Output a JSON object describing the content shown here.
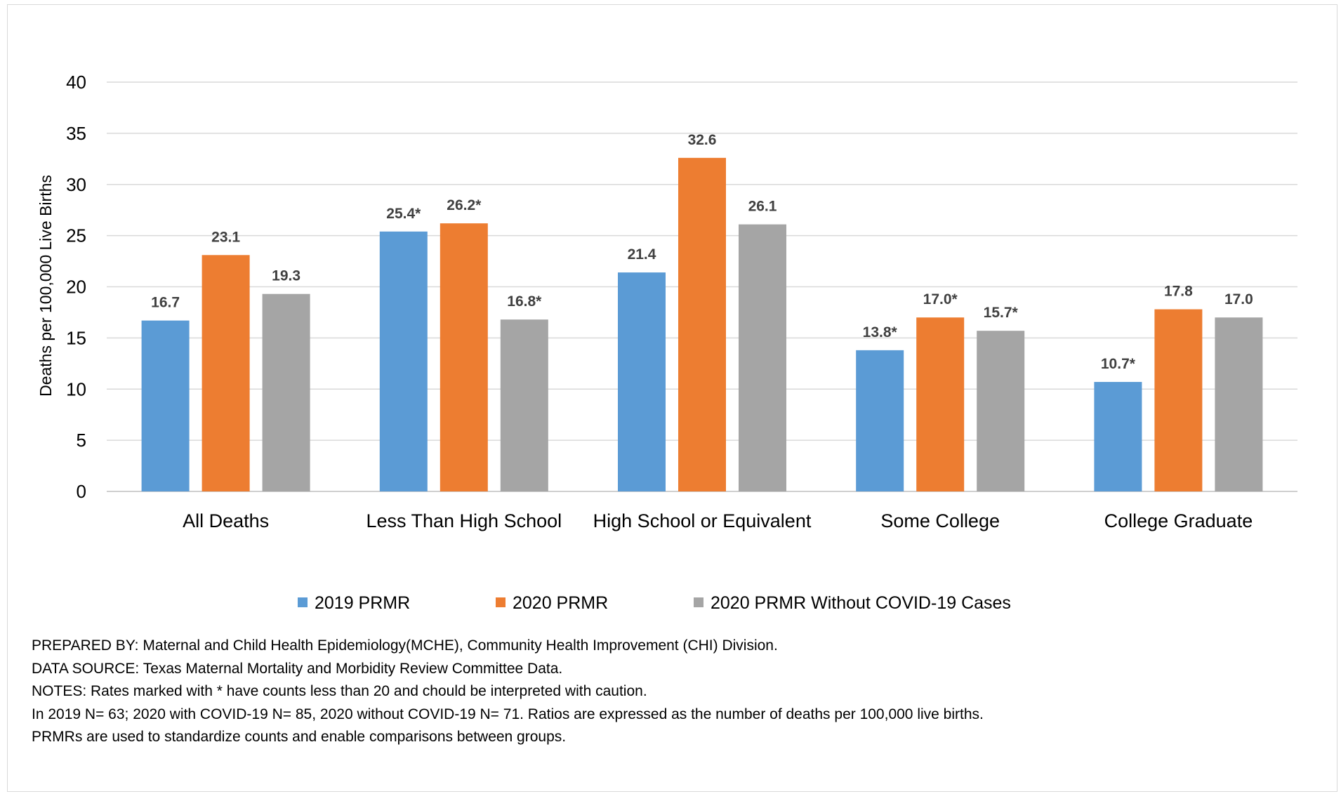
{
  "chart_data": {
    "type": "bar",
    "title": "",
    "xlabel": "",
    "ylabel": "Deaths per 100,000 Live Births",
    "ylim": [
      0,
      40
    ],
    "yticks": [
      0,
      5,
      10,
      15,
      20,
      25,
      30,
      35,
      40
    ],
    "grid": true,
    "legend_position": "bottom",
    "categories": [
      "All Deaths",
      "Less Than High School",
      "High School or Equivalent",
      "Some College",
      "College Graduate"
    ],
    "series": [
      {
        "name": "2019 PRMR",
        "color": "#5b9bd5",
        "values": [
          16.7,
          25.4,
          21.4,
          13.8,
          10.7
        ],
        "labels": [
          "16.7",
          "25.4*",
          "21.4",
          "13.8*",
          "10.7*"
        ]
      },
      {
        "name": "2020 PRMR",
        "color": "#ed7d31",
        "values": [
          23.1,
          26.2,
          32.6,
          17.0,
          17.8
        ],
        "labels": [
          "23.1",
          "26.2*",
          "32.6",
          "17.0*",
          "17.8"
        ]
      },
      {
        "name": "2020 PRMR Without COVID-19 Cases",
        "color": "#a5a5a5",
        "values": [
          19.3,
          16.8,
          26.1,
          15.7,
          17.0
        ],
        "labels": [
          "19.3",
          "16.8*",
          "26.1",
          "15.7*",
          "17.0"
        ]
      }
    ]
  },
  "notes": {
    "prepared_by": "PREPARED BY: Maternal and Child Health Epidemiology(MCHE), Community Health Improvement (CHI) Division.",
    "data_source": "DATA SOURCE: Texas Maternal Mortality and Morbidity Review Committee Data.",
    "notes_line": "NOTES: Rates marked with * have counts less than 20 and chould be interpreted with caution.",
    "counts_line": "In 2019 N= 63; 2020 with COVID-19 N= 85, 2020 without COVID-19 N= 71. Ratios are expressed as the number of deaths per 100,000 live births.",
    "standardize_line": "PRMRs are used to standardize counts and enable comparisons between groups."
  }
}
